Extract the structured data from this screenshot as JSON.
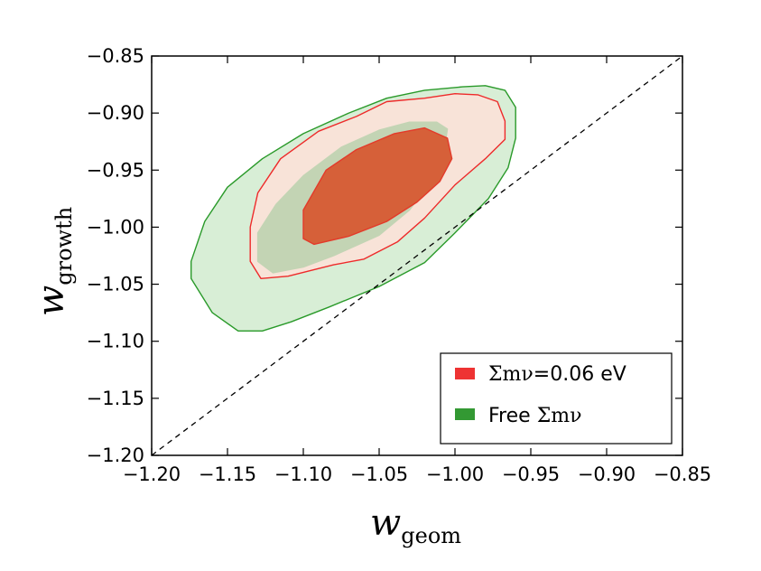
{
  "chart_data": {
    "type": "contour",
    "xlabel": "w",
    "xlabel_sub": "geom",
    "ylabel": "w",
    "ylabel_sub": "growth",
    "xlim": [
      -1.2,
      -0.85
    ],
    "ylim": [
      -1.2,
      -0.85
    ],
    "x_ticks": [
      -1.2,
      -1.15,
      -1.1,
      -1.05,
      -1.0,
      -0.95,
      -0.9,
      -0.85
    ],
    "x_tick_labels": [
      "−1.20",
      "−1.15",
      "−1.10",
      "−1.05",
      "−1.00",
      "−0.95",
      "−0.90",
      "−0.85"
    ],
    "y_ticks": [
      -0.85,
      -0.9,
      -0.95,
      -1.0,
      -1.05,
      -1.1,
      -1.15,
      -1.2
    ],
    "y_tick_labels": [
      "−0.85",
      "−0.90",
      "−0.95",
      "−1.00",
      "−1.05",
      "−1.10",
      "−1.15",
      "−1.20"
    ],
    "grid": false,
    "reference_line": {
      "style": "dashed",
      "color": "#000000",
      "x": [
        -1.2,
        -0.85
      ],
      "y": [
        -1.2,
        -0.85
      ]
    },
    "legend": {
      "placement": "lower-right",
      "entries": [
        {
          "label_math": "Σmν",
          "label_suffix": "=0.06 eV",
          "color": "#ee3333"
        },
        {
          "label_prefix": "Free ",
          "label_math": "Σmν",
          "color": "#339933"
        }
      ]
    },
    "series": [
      {
        "name": "Free Σmν",
        "color": "#339933",
        "contours": [
          {
            "level": "95%",
            "fill": "#d8eed6",
            "stroke": "#2a9a2a",
            "points": [
              [
                -1.174,
                -1.03
              ],
              [
                -1.174,
                -1.045
              ],
              [
                -1.16,
                -1.075
              ],
              [
                -1.143,
                -1.091
              ],
              [
                -1.127,
                -1.091
              ],
              [
                -1.108,
                -1.083
              ],
              [
                -1.083,
                -1.07
              ],
              [
                -1.05,
                -1.052
              ],
              [
                -1.02,
                -1.031
              ],
              [
                -1.0,
                -1.005
              ],
              [
                -0.978,
                -0.975
              ],
              [
                -0.965,
                -0.948
              ],
              [
                -0.96,
                -0.922
              ],
              [
                -0.96,
                -0.895
              ],
              [
                -0.967,
                -0.88
              ],
              [
                -0.98,
                -0.876
              ],
              [
                -0.995,
                -0.877
              ],
              [
                -1.02,
                -0.88
              ],
              [
                -1.045,
                -0.887
              ],
              [
                -1.07,
                -0.9
              ],
              [
                -1.1,
                -0.918
              ],
              [
                -1.127,
                -0.94
              ],
              [
                -1.15,
                -0.965
              ],
              [
                -1.165,
                -0.995
              ]
            ]
          },
          {
            "level": "68%",
            "fill": "#c3d4b4",
            "stroke": "#c3d4b4",
            "points": [
              [
                -1.13,
                -1.03
              ],
              [
                -1.12,
                -1.04
              ],
              [
                -1.1,
                -1.035
              ],
              [
                -1.08,
                -1.025
              ],
              [
                -1.05,
                -1.007
              ],
              [
                -1.03,
                -0.985
              ],
              [
                -1.013,
                -0.955
              ],
              [
                -1.007,
                -0.932
              ],
              [
                -1.005,
                -0.914
              ],
              [
                -1.012,
                -0.908
              ],
              [
                -1.03,
                -0.908
              ],
              [
                -1.05,
                -0.915
              ],
              [
                -1.075,
                -0.93
              ],
              [
                -1.1,
                -0.955
              ],
              [
                -1.118,
                -0.98
              ],
              [
                -1.13,
                -1.005
              ]
            ]
          }
        ]
      },
      {
        "name": "Σmν=0.06 eV",
        "color": "#ee3333",
        "contours": [
          {
            "level": "95%",
            "fill": "#f8e3d8",
            "stroke": "#ee2a2a",
            "points": [
              [
                -1.135,
                -1.03
              ],
              [
                -1.128,
                -1.045
              ],
              [
                -1.11,
                -1.043
              ],
              [
                -1.08,
                -1.033
              ],
              [
                -1.06,
                -1.028
              ],
              [
                -1.038,
                -1.013
              ],
              [
                -1.02,
                -0.992
              ],
              [
                -1.0,
                -0.963
              ],
              [
                -0.98,
                -0.94
              ],
              [
                -0.967,
                -0.923
              ],
              [
                -0.967,
                -0.907
              ],
              [
                -0.972,
                -0.89
              ],
              [
                -0.985,
                -0.884
              ],
              [
                -1.0,
                -0.883
              ],
              [
                -1.02,
                -0.887
              ],
              [
                -1.045,
                -0.89
              ],
              [
                -1.065,
                -0.903
              ],
              [
                -1.09,
                -0.916
              ],
              [
                -1.115,
                -0.94
              ],
              [
                -1.13,
                -0.97
              ],
              [
                -1.135,
                -1.0
              ]
            ]
          },
          {
            "level": "68%",
            "fill": "#d66039",
            "stroke": "#e33a2a",
            "points": [
              [
                -1.1,
                -0.985
              ],
              [
                -1.1,
                -1.01
              ],
              [
                -1.093,
                -1.015
              ],
              [
                -1.07,
                -1.008
              ],
              [
                -1.045,
                -0.995
              ],
              [
                -1.025,
                -0.978
              ],
              [
                -1.01,
                -0.96
              ],
              [
                -1.002,
                -0.94
              ],
              [
                -1.005,
                -0.922
              ],
              [
                -1.02,
                -0.913
              ],
              [
                -1.04,
                -0.918
              ],
              [
                -1.065,
                -0.932
              ],
              [
                -1.085,
                -0.95
              ]
            ]
          }
        ]
      }
    ]
  }
}
